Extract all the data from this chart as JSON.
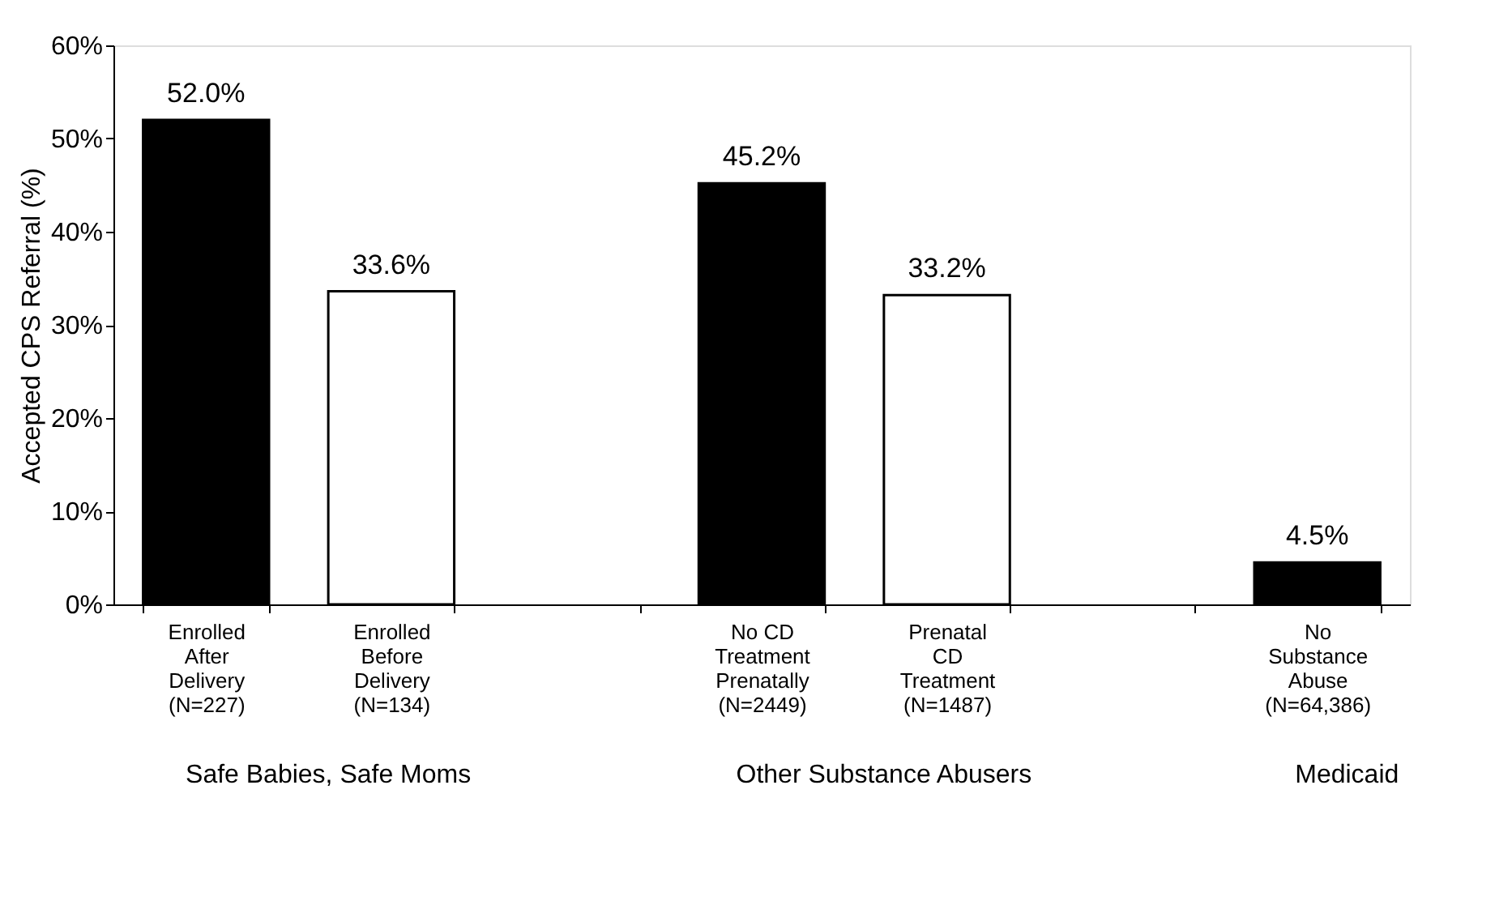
{
  "chart_data": {
    "type": "bar",
    "categories": [
      "Enrolled\nAfter\nDelivery\n(N=227)",
      "Enrolled\nBefore\nDelivery\n(N=134)",
      null,
      "No CD\nTreatment\nPrenatally\n(N=2449)",
      "Prenatal\nCD\nTreatment\n(N=1487)",
      null,
      "No\nSubstance\nAbuse\n(N=64,386)"
    ],
    "values": [
      52.0,
      33.6,
      null,
      45.2,
      33.2,
      null,
      4.5
    ],
    "colors": [
      "#000000",
      "#ffffff",
      null,
      "#000000",
      "#ffffff",
      null,
      "#000000"
    ],
    "value_labels": [
      "52.0%",
      "33.6%",
      null,
      "45.2%",
      "33.2%",
      null,
      "4.5%"
    ],
    "ylabel": "Accepted CPS Referral (%)",
    "ylim": [
      0,
      60
    ],
    "yticks": [
      {
        "value": 0,
        "label": "0%"
      },
      {
        "value": 10,
        "label": "10%"
      },
      {
        "value": 20,
        "label": "20%"
      },
      {
        "value": 30,
        "label": "30%"
      },
      {
        "value": 40,
        "label": "40%"
      },
      {
        "value": 50,
        "label": "50%"
      },
      {
        "value": 60,
        "label": "60%"
      }
    ],
    "annotations": [
      "Safe Babies, Safe Moms",
      "Other Substance Abusers",
      "Medicaid"
    ],
    "grid": false
  }
}
